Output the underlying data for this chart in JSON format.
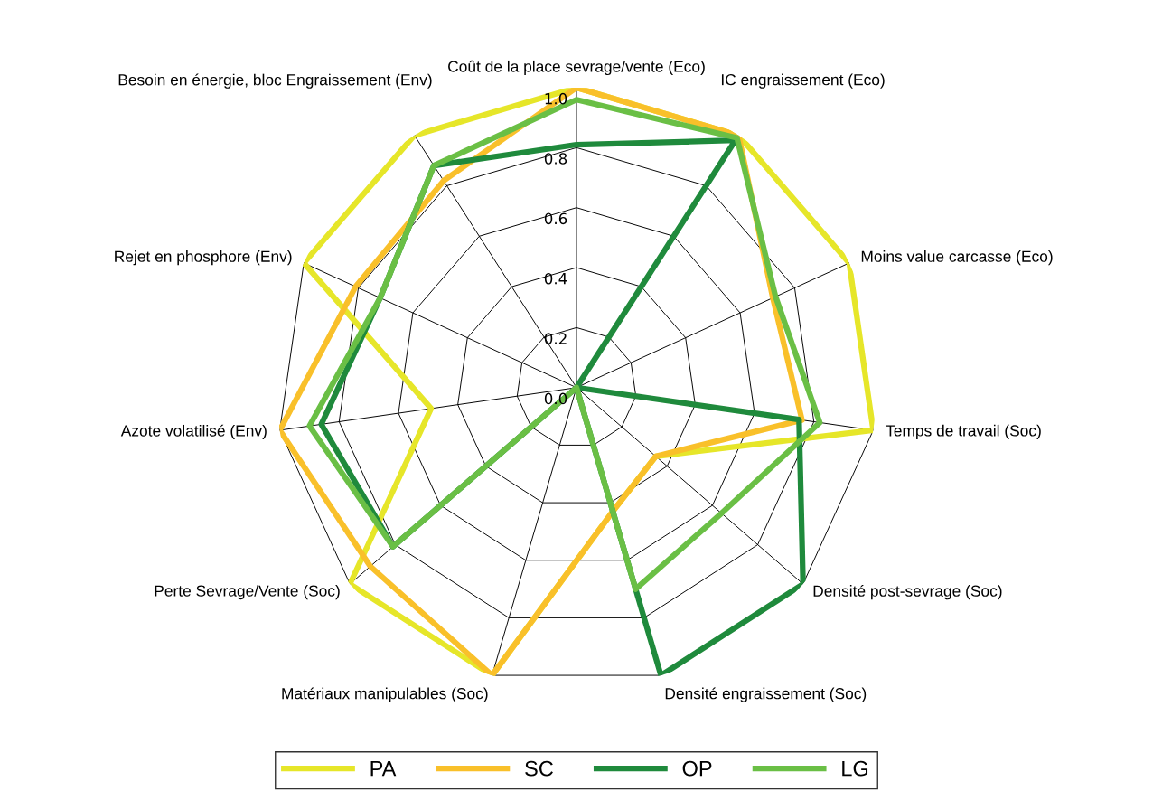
{
  "chart_data": {
    "type": "radar",
    "categories": [
      "Coût de la place sevrage/vente (Eco)",
      "IC engraissement (Eco)",
      "Moins value carcasse (Eco)",
      "Temps de travail (Soc)",
      "Densité post-sevrage (Soc)",
      "Densité engraissement (Soc)",
      "Matériaux manipulables (Soc)",
      "Perte Sevrage/Vente (Soc)",
      "Azote volatilisé (Env)",
      "Rejet en phosphore (Env)",
      "Besoin en énergie, bloc Engraissement (Env)"
    ],
    "series": [
      {
        "name": "PA",
        "color": "#e6e629",
        "values": [
          1.0,
          1.0,
          1.0,
          1.0,
          0.35,
          0.43,
          1.0,
          1.0,
          0.49,
          1.0,
          1.0
        ]
      },
      {
        "name": "SC",
        "color": "#f9c02a",
        "values": [
          1.0,
          1.0,
          0.72,
          0.76,
          0.35,
          0.43,
          1.0,
          0.91,
          1.0,
          0.81,
          0.82
        ]
      },
      {
        "name": "OP",
        "color": "#1f8a3c",
        "values": [
          0.81,
          0.98,
          0.0,
          0.75,
          1.0,
          1.0,
          0.0,
          0.81,
          0.86,
          0.72,
          0.88
        ]
      },
      {
        "name": "LG",
        "color": "#6abf45",
        "values": [
          0.96,
          0.99,
          0.73,
          0.82,
          0.64,
          0.7,
          0.0,
          0.81,
          0.9,
          0.72,
          0.88
        ]
      }
    ],
    "ylim": [
      0,
      1.0
    ],
    "yticks": [
      {
        "value": 0,
        "label": "0.0"
      },
      {
        "value": 0.2,
        "label": "0.2"
      },
      {
        "value": 0.4,
        "label": "0.4"
      },
      {
        "value": 0.6,
        "label": "0.6"
      },
      {
        "value": 0.8,
        "label": "0.8"
      },
      {
        "value": 1.0,
        "label": "1.0"
      }
    ],
    "grid": true,
    "legend": "bottom",
    "marker": "none",
    "line_style": "solid"
  }
}
